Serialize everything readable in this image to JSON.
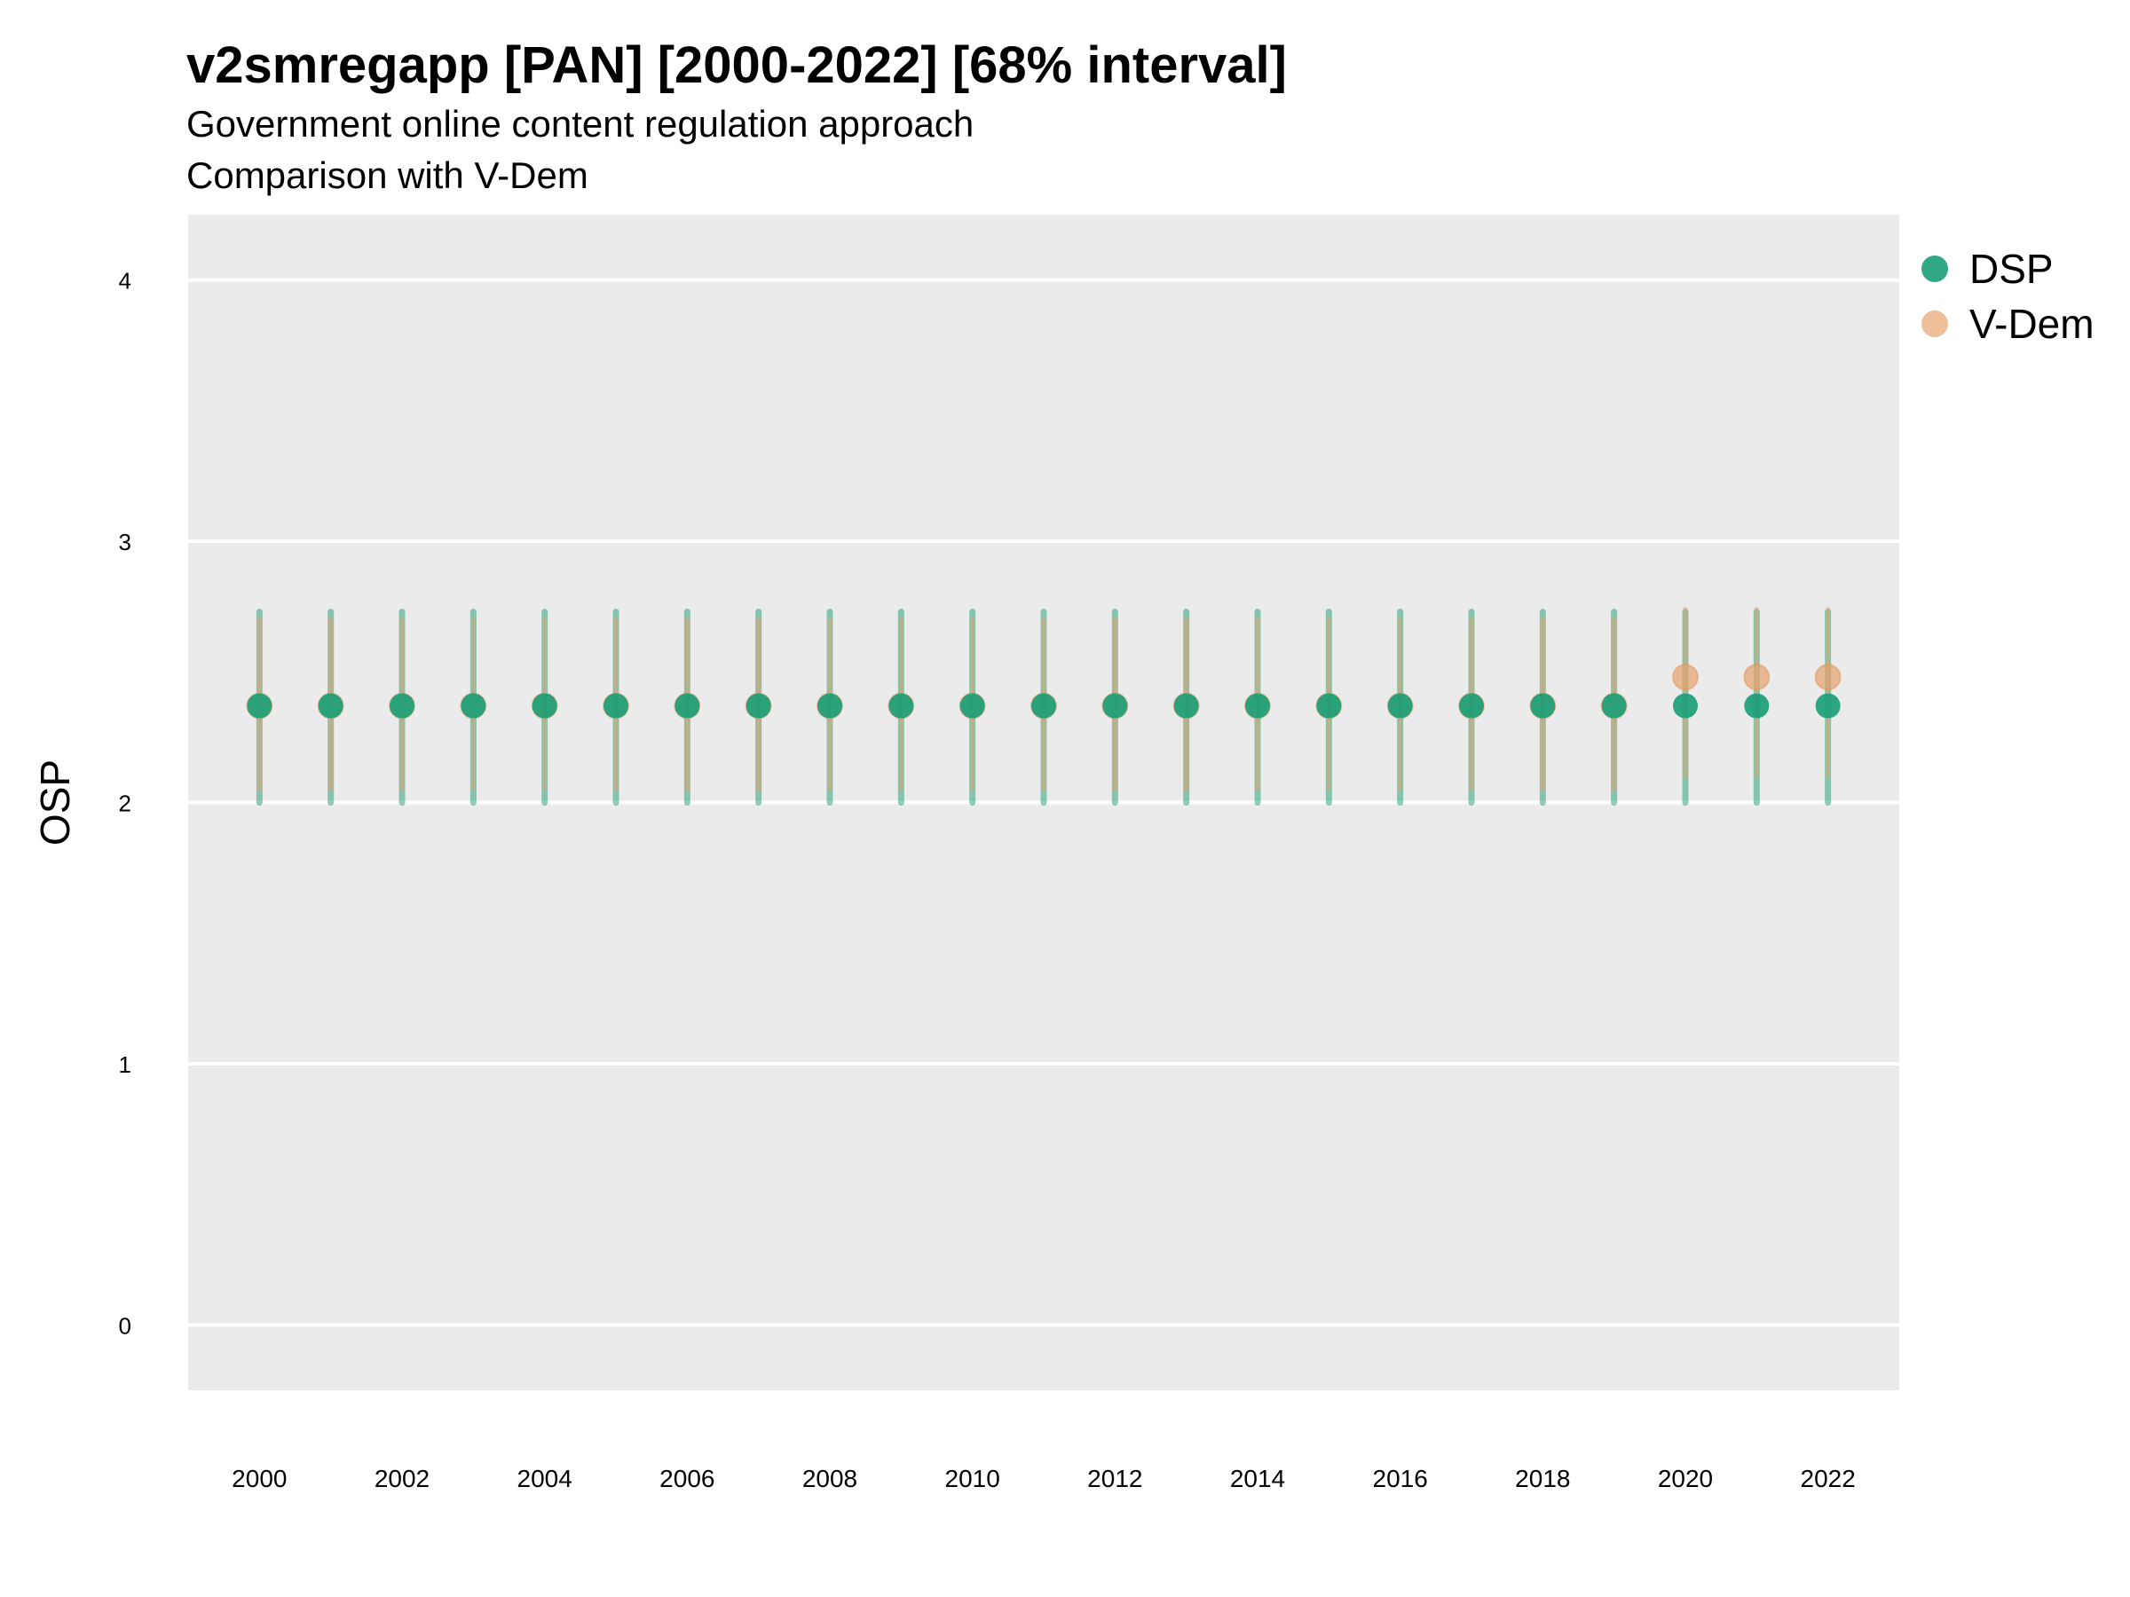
{
  "title": "v2smregapp [PAN] [2000-2022] [68% interval]",
  "subtitle": "Government online content regulation approach",
  "caption": "Comparison with V-Dem",
  "legend": [
    {
      "name": "DSP",
      "color": "#1b9e77"
    },
    {
      "name": "V-Dem",
      "color": "#e6a36e"
    }
  ],
  "chart_data": {
    "type": "scatter",
    "title": "v2smregapp [PAN] [2000-2022] [68% interval]",
    "subtitle": "Government online content regulation approach",
    "ylabel": "OSP",
    "xlabel": "",
    "ylim": [
      -0.25,
      4.25
    ],
    "y_ticks": [
      0,
      1,
      2,
      3,
      4
    ],
    "x_ticks": [
      2000,
      2002,
      2004,
      2006,
      2008,
      2010,
      2012,
      2014,
      2016,
      2018,
      2020,
      2022
    ],
    "grid": true,
    "legend_position": "right",
    "x": [
      2000,
      2001,
      2002,
      2003,
      2004,
      2005,
      2006,
      2007,
      2008,
      2009,
      2010,
      2011,
      2012,
      2013,
      2014,
      2015,
      2016,
      2017,
      2018,
      2019,
      2020,
      2021,
      2022
    ],
    "series": [
      {
        "name": "DSP",
        "color": "#1b9e77",
        "values": [
          2.37,
          2.37,
          2.37,
          2.37,
          2.37,
          2.37,
          2.37,
          2.37,
          2.37,
          2.37,
          2.37,
          2.37,
          2.37,
          2.37,
          2.37,
          2.37,
          2.37,
          2.37,
          2.37,
          2.37,
          2.37,
          2.37,
          2.37
        ],
        "lower": [
          2.0,
          2.0,
          2.0,
          2.0,
          2.0,
          2.0,
          2.0,
          2.0,
          2.0,
          2.0,
          2.0,
          2.0,
          2.0,
          2.0,
          2.0,
          2.0,
          2.0,
          2.0,
          2.0,
          2.0,
          2.0,
          2.0,
          2.0
        ],
        "upper": [
          2.73,
          2.73,
          2.73,
          2.73,
          2.73,
          2.73,
          2.73,
          2.73,
          2.73,
          2.73,
          2.73,
          2.73,
          2.73,
          2.73,
          2.73,
          2.73,
          2.73,
          2.73,
          2.73,
          2.73,
          2.73,
          2.73,
          2.73
        ]
      },
      {
        "name": "V-Dem",
        "color": "#e6a36e",
        "values": [
          2.37,
          2.37,
          2.37,
          2.37,
          2.37,
          2.37,
          2.37,
          2.37,
          2.37,
          2.37,
          2.37,
          2.37,
          2.37,
          2.37,
          2.37,
          2.37,
          2.37,
          2.37,
          2.37,
          2.37,
          2.48,
          2.48,
          2.48
        ],
        "lower": [
          2.05,
          2.05,
          2.05,
          2.05,
          2.05,
          2.05,
          2.05,
          2.05,
          2.05,
          2.05,
          2.05,
          2.05,
          2.05,
          2.05,
          2.05,
          2.05,
          2.05,
          2.05,
          2.05,
          2.05,
          2.1,
          2.1,
          2.1
        ],
        "upper": [
          2.7,
          2.7,
          2.7,
          2.7,
          2.7,
          2.7,
          2.7,
          2.7,
          2.7,
          2.7,
          2.7,
          2.7,
          2.7,
          2.7,
          2.7,
          2.7,
          2.7,
          2.7,
          2.7,
          2.7,
          2.74,
          2.74,
          2.74
        ]
      }
    ]
  }
}
